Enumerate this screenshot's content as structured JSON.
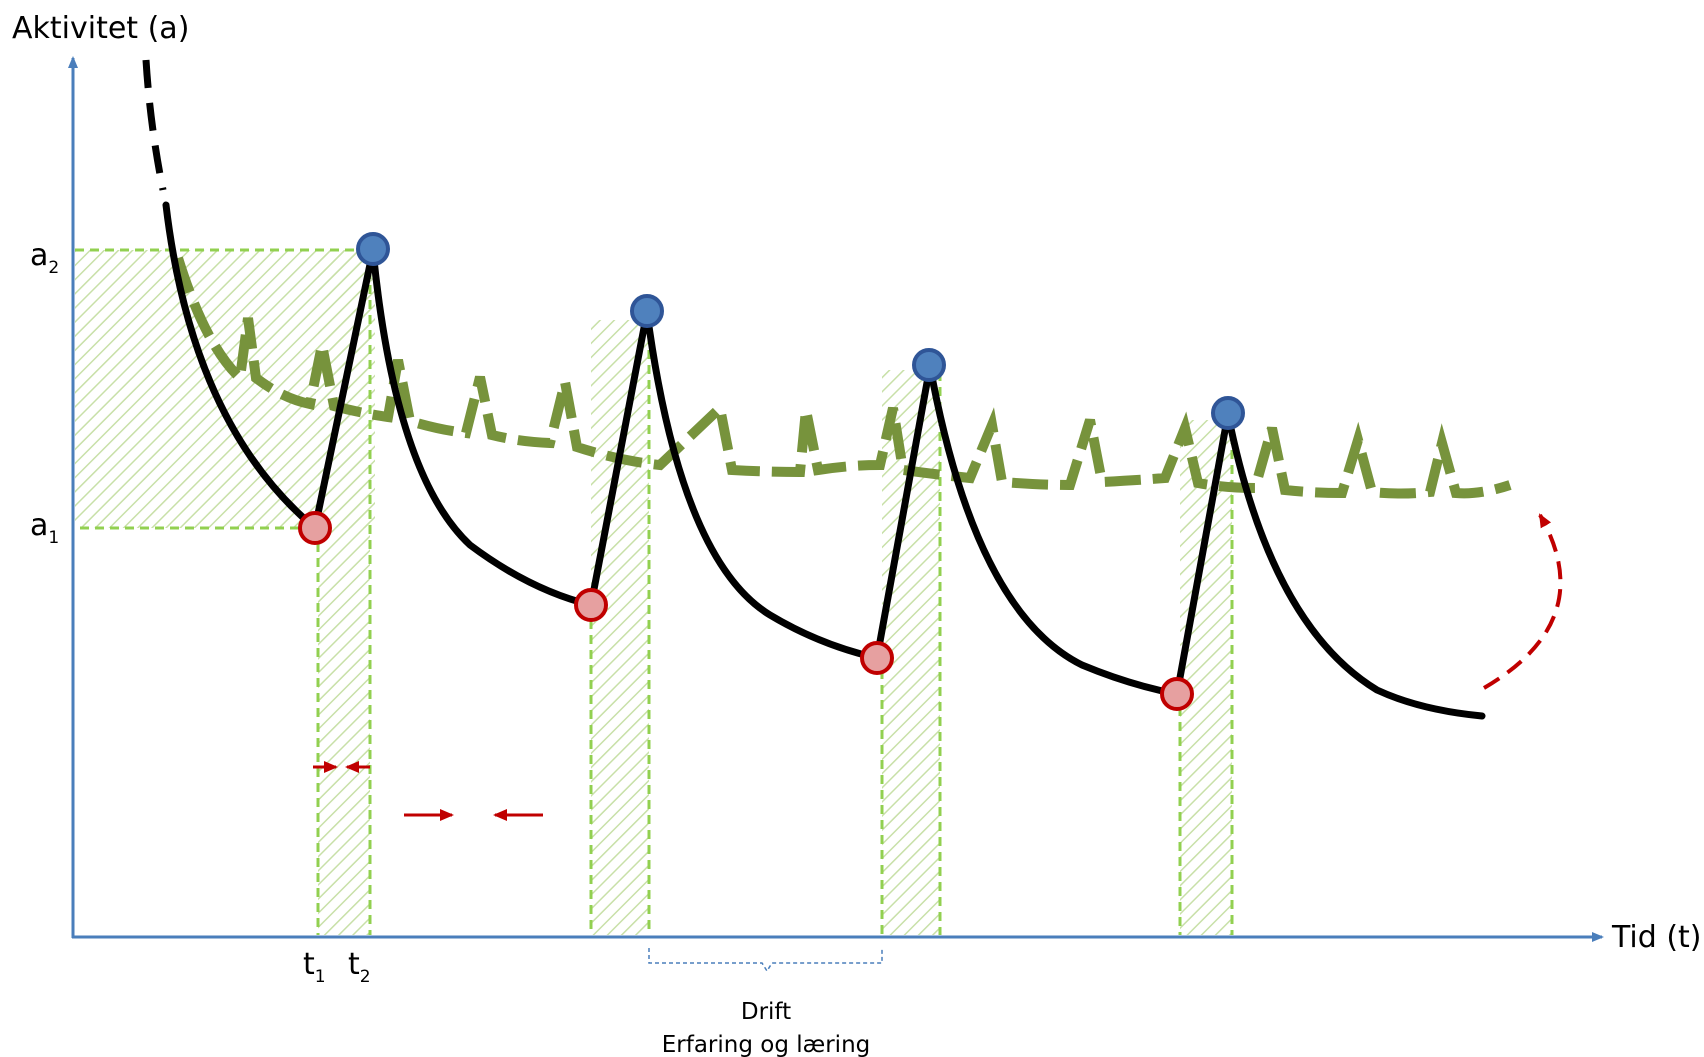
{
  "axes": {
    "y_label": "Aktivitet (a)",
    "x_label": "Tid (t)",
    "color": "#4a7ebb"
  },
  "levels": {
    "a2": {
      "base": "a",
      "sub": "2"
    },
    "a1": {
      "base": "a",
      "sub": "1"
    }
  },
  "times": {
    "t1": {
      "base": "t",
      "sub": "1"
    },
    "t2": {
      "base": "t",
      "sub": "2"
    }
  },
  "brace": {
    "line1": "Drift",
    "line2": "Erfaring og læring",
    "color": "#4a7ebb"
  },
  "colors": {
    "activity_curve": "#000000",
    "trend_curve": "#77933c",
    "guide_lines": "#92d050",
    "low_point_fill": "#e6a0a0",
    "low_point_stroke": "#c00000",
    "peak_fill": "#4f81bd",
    "peak_stroke": "#2f5597",
    "arrows": "#c00000"
  },
  "icons": {
    "low_point": "red-circle-marker",
    "peak": "blue-circle-marker",
    "return_arrow": "dashed-curved-arrow-icon"
  }
}
